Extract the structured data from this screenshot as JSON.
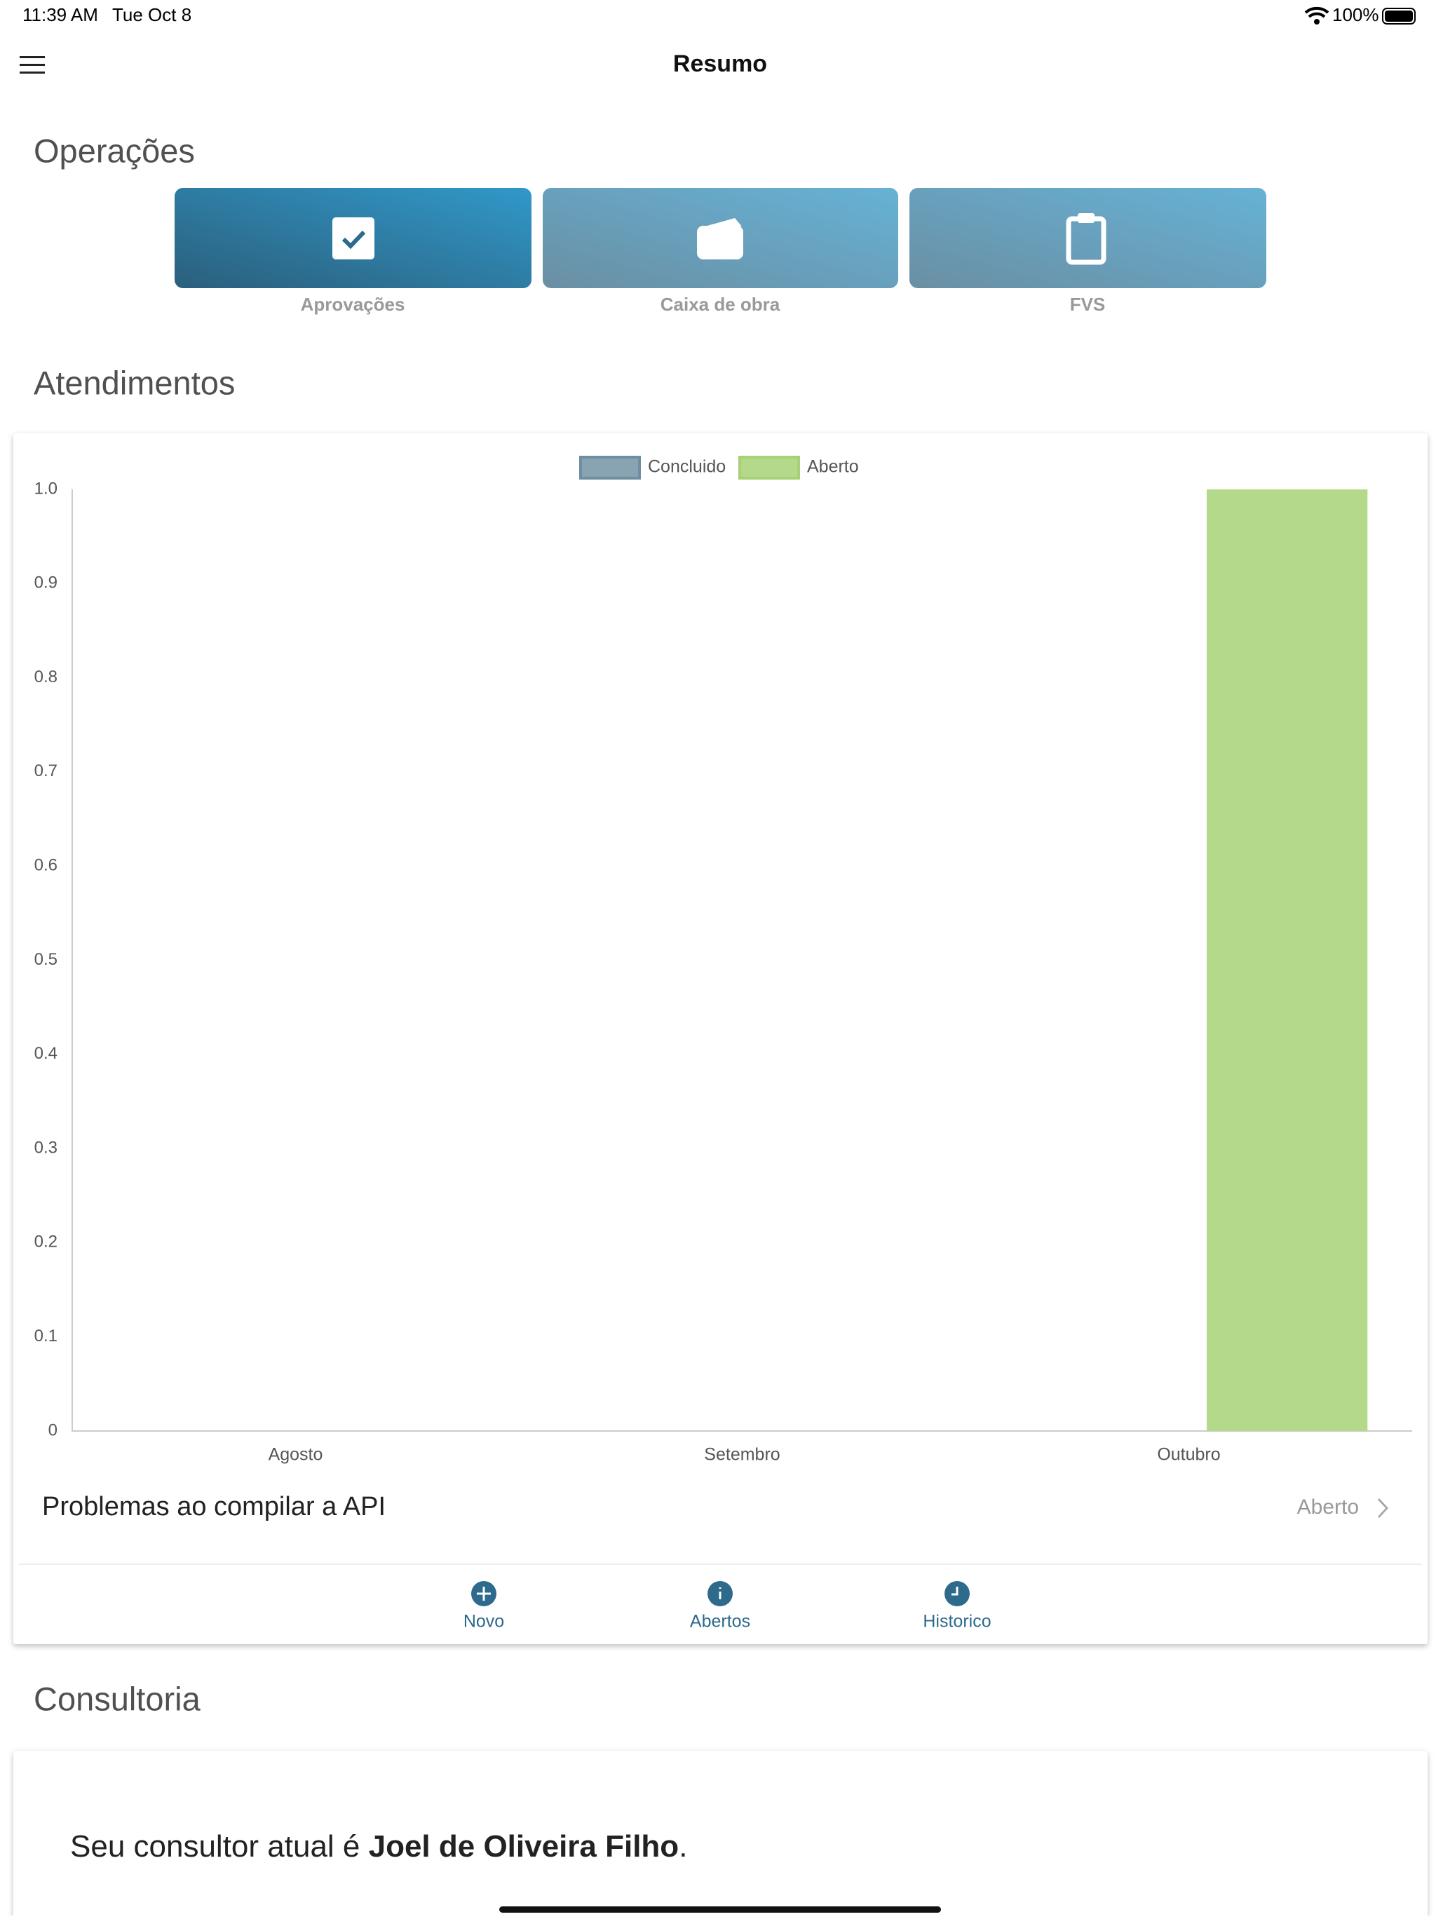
{
  "status_bar": {
    "time": "11:39 AM",
    "date": "Tue Oct 8",
    "battery": "100%"
  },
  "nav": {
    "title": "Resumo"
  },
  "operacoes": {
    "title": "Operações",
    "buttons": [
      "Aprovações",
      "Caixa de obra",
      "FVS"
    ]
  },
  "atendimentos": {
    "title": "Atendimentos",
    "item": {
      "label": "Problemas ao compilar a API",
      "status": "Aberto"
    },
    "tabs": [
      "Novo",
      "Abertos",
      "Historico"
    ]
  },
  "chart_data": {
    "type": "bar",
    "categories": [
      "Agosto",
      "Setembro",
      "Outubro"
    ],
    "series": [
      {
        "name": "Concluido",
        "color": "#8aa3b3",
        "values": [
          0,
          0,
          0
        ]
      },
      {
        "name": "Aberto",
        "color": "#b5d98b",
        "values": [
          0,
          0,
          1
        ]
      }
    ],
    "ylim": [
      0,
      1
    ],
    "yticks": [
      0,
      0.1,
      0.2,
      0.3,
      0.4,
      0.5,
      0.6,
      0.7,
      0.8,
      0.9,
      {
        "value": 1,
        "label": "1.0"
      }
    ],
    "grid": false,
    "legend": "top"
  },
  "consultoria": {
    "title": "Consultoria",
    "text": "Seu consultor atual é ",
    "name": "Joel de Oliveira Filho",
    "end": "."
  }
}
